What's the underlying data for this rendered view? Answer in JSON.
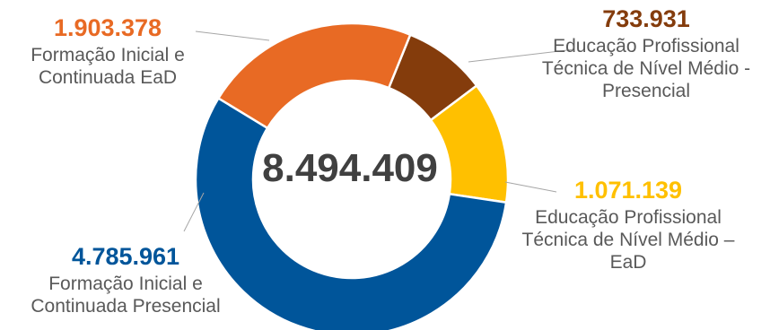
{
  "chart_data": {
    "type": "pie",
    "variant": "donut",
    "total_label": "8.494.409",
    "slices": [
      {
        "label": "Técnica de Nível Médio -\nPresencial",
        "category": "Educação Profissional\nTécnica de Nível Médio -\nPresencial",
        "value": 733931,
        "value_label": "733.931",
        "color": "#843C0C"
      },
      {
        "label": "Técnica de Nível Médio –\nEaD",
        "category": "Educação Profissional\nTécnica de Nível Médio –\nEaD",
        "value": 1071139,
        "value_label": "1.071.139",
        "color": "#FFC000"
      },
      {
        "label": "Continuada Presencial",
        "category": "Formação Inicial e\nContinuada Presencial",
        "value": 4785961,
        "value_label": "4.785.961",
        "color": "#00559A"
      },
      {
        "label": "Continuada EaD",
        "category": "Formação Inicial e\nContinuada EaD",
        "value": 1903378,
        "value_label": "1.903.378",
        "color": "#E86A24"
      }
    ],
    "title": "",
    "legend": "none",
    "value_label_colors": [
      "#843C0C",
      "#FFC000",
      "#00559A",
      "#E86A24"
    ]
  }
}
